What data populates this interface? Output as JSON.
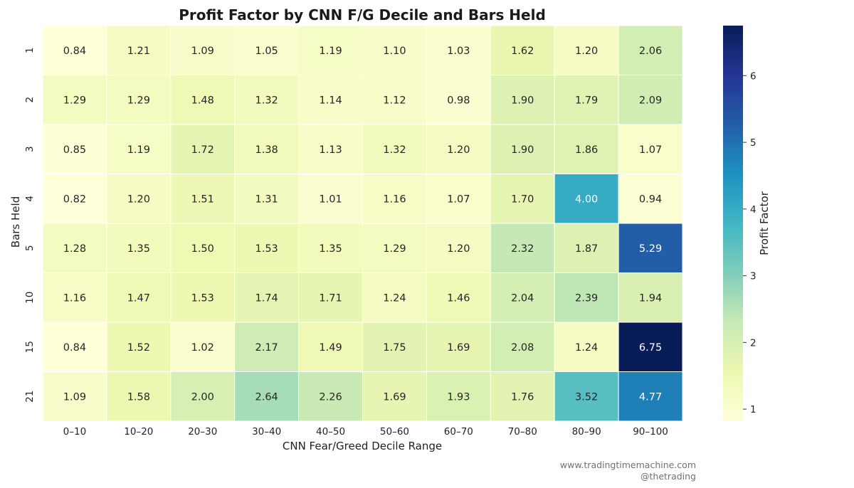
{
  "chart_data": {
    "type": "heatmap",
    "title": "Profit Factor by CNN F/G Decile and Bars Held",
    "xlabel": "CNN Fear/Greed Decile Range",
    "ylabel": "Bars Held",
    "x_categories": [
      "0–10",
      "10–20",
      "20–30",
      "30–40",
      "40–50",
      "50–60",
      "60–70",
      "70–80",
      "80–90",
      "90–100"
    ],
    "y_categories": [
      "1",
      "2",
      "3",
      "4",
      "5",
      "10",
      "15",
      "21"
    ],
    "values": [
      [
        0.84,
        1.21,
        1.09,
        1.05,
        1.19,
        1.1,
        1.03,
        1.62,
        1.2,
        2.06
      ],
      [
        1.29,
        1.29,
        1.48,
        1.32,
        1.14,
        1.12,
        0.98,
        1.9,
        1.79,
        2.09
      ],
      [
        0.85,
        1.19,
        1.72,
        1.38,
        1.13,
        1.32,
        1.2,
        1.9,
        1.86,
        1.07
      ],
      [
        0.82,
        1.2,
        1.51,
        1.31,
        1.01,
        1.16,
        1.07,
        1.7,
        4.0,
        0.94
      ],
      [
        1.28,
        1.35,
        1.5,
        1.53,
        1.35,
        1.29,
        1.2,
        2.32,
        1.87,
        5.29
      ],
      [
        1.16,
        1.47,
        1.53,
        1.74,
        1.71,
        1.24,
        1.46,
        2.04,
        2.39,
        1.94
      ],
      [
        0.84,
        1.52,
        1.02,
        2.17,
        1.49,
        1.75,
        1.69,
        2.08,
        1.24,
        6.75
      ],
      [
        1.09,
        1.58,
        2.0,
        2.64,
        2.26,
        1.69,
        1.93,
        1.76,
        3.52,
        4.77
      ]
    ],
    "value_format": "2 decimals",
    "colormap": "YlGnBu",
    "colorbar": {
      "label": "Profit Factor",
      "min": 0.82,
      "max": 6.75,
      "ticks": [
        "1",
        "2",
        "3",
        "4",
        "5",
        "6"
      ]
    },
    "legend_position": "right"
  },
  "watermark": {
    "site": "www.tradingtimemachine.com",
    "handle": "@thetrading"
  }
}
